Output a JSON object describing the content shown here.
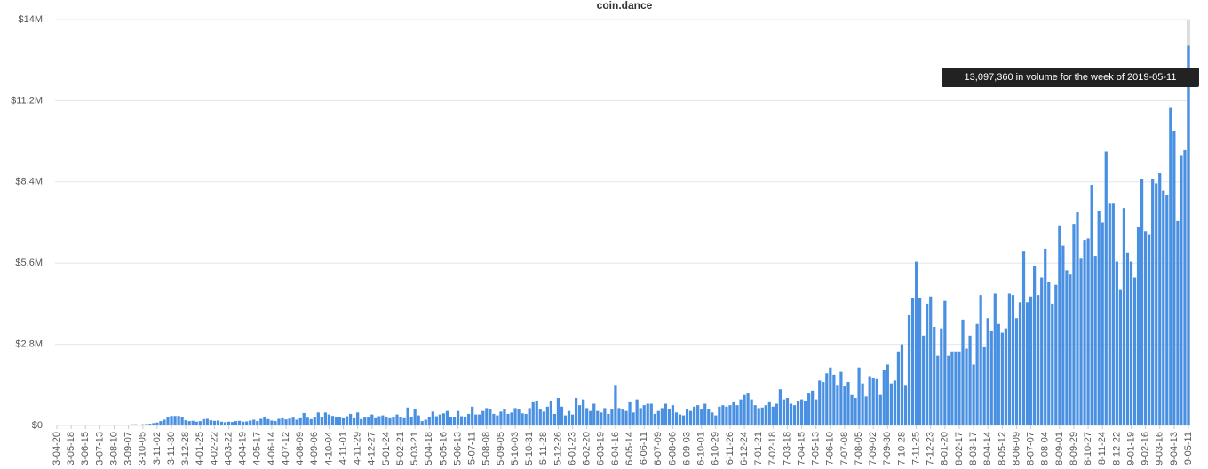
{
  "chart_data": {
    "type": "bar",
    "subtitle": "coin.dance",
    "annotation": "13,097,360 in volume for the week of 2019-05-11",
    "color": "#4a90e2",
    "grid": true,
    "ylim": [
      0,
      14000000
    ],
    "yticks": [
      {
        "value": 0,
        "label": "$0"
      },
      {
        "value": 2800000,
        "label": "$2.8M"
      },
      {
        "value": 5600000,
        "label": "$5.6M"
      },
      {
        "value": 8400000,
        "label": "$8.4M"
      },
      {
        "value": 11200000,
        "label": "$11.2M"
      },
      {
        "value": 14000000,
        "label": "$14M"
      }
    ],
    "categories": [
      "3-04-20",
      null,
      null,
      null,
      "3-05-18",
      null,
      null,
      null,
      "3-06-15",
      null,
      null,
      null,
      "3-07-13",
      null,
      null,
      null,
      "3-08-10",
      null,
      null,
      null,
      "3-09-07",
      null,
      null,
      null,
      "3-10-05",
      null,
      null,
      null,
      "3-11-02",
      null,
      null,
      null,
      "3-11-30",
      null,
      null,
      null,
      "3-12-28",
      null,
      null,
      null,
      "4-01-25",
      null,
      null,
      null,
      "4-02-22",
      null,
      null,
      null,
      "4-03-22",
      null,
      null,
      null,
      "4-04-19",
      null,
      null,
      null,
      "4-05-17",
      null,
      null,
      null,
      "4-06-14",
      null,
      null,
      null,
      "4-07-12",
      null,
      null,
      null,
      "4-08-09",
      null,
      null,
      null,
      "4-09-06",
      null,
      null,
      null,
      "4-10-04",
      null,
      null,
      null,
      "4-11-01",
      null,
      null,
      null,
      "4-11-29",
      null,
      null,
      null,
      "4-12-27",
      null,
      null,
      null,
      "5-01-24",
      null,
      null,
      null,
      "5-02-21",
      null,
      null,
      null,
      "5-03-21",
      null,
      null,
      null,
      "5-04-18",
      null,
      null,
      null,
      "5-05-16",
      null,
      null,
      null,
      "5-06-13",
      null,
      null,
      null,
      "5-07-11",
      null,
      null,
      null,
      "5-08-08",
      null,
      null,
      null,
      "5-09-05",
      null,
      null,
      null,
      "5-10-03",
      null,
      null,
      null,
      "5-10-31",
      null,
      null,
      null,
      "5-11-28",
      null,
      null,
      null,
      "5-12-26",
      null,
      null,
      null,
      "6-01-23",
      null,
      null,
      null,
      "6-02-20",
      null,
      null,
      null,
      "6-03-19",
      null,
      null,
      null,
      "6-04-16",
      null,
      null,
      null,
      "6-05-14",
      null,
      null,
      null,
      "6-06-11",
      null,
      null,
      null,
      "6-07-09",
      null,
      null,
      null,
      "6-08-06",
      null,
      null,
      null,
      "6-09-03",
      null,
      null,
      null,
      "6-10-01",
      null,
      null,
      null,
      "6-10-29",
      null,
      null,
      null,
      "6-11-26",
      null,
      null,
      null,
      "6-12-24",
      null,
      null,
      null,
      "7-01-21",
      null,
      null,
      null,
      "7-02-18",
      null,
      null,
      null,
      "7-03-18",
      null,
      null,
      null,
      "7-04-15",
      null,
      null,
      null,
      "7-05-13",
      null,
      null,
      null,
      "7-06-10",
      null,
      null,
      null,
      "7-07-08",
      null,
      null,
      null,
      "7-08-05",
      null,
      null,
      null,
      "7-09-02",
      null,
      null,
      null,
      "7-09-30",
      null,
      null,
      null,
      "7-10-28",
      null,
      null,
      null,
      "7-11-25",
      null,
      null,
      null,
      "7-12-23",
      null,
      null,
      null,
      "8-01-20",
      null,
      null,
      null,
      "8-02-17",
      null,
      null,
      null,
      "8-03-17",
      null,
      null,
      null,
      "8-04-14",
      null,
      null,
      null,
      "8-05-12",
      null,
      null,
      null,
      "8-06-09",
      null,
      null,
      null,
      "8-07-07",
      null,
      null,
      null,
      "8-08-04",
      null,
      null,
      null,
      "8-09-01",
      null,
      null,
      null,
      "8-09-29",
      null,
      null,
      null,
      "8-10-27",
      null,
      null,
      null,
      "8-11-24",
      null,
      null,
      null,
      "8-12-22",
      null,
      null,
      null,
      "9-01-19",
      null,
      null,
      null,
      "9-02-16",
      null,
      null,
      null,
      "9-03-16",
      null,
      null,
      null,
      "9-04-13",
      null,
      null,
      null,
      "9-05-11"
    ],
    "values": [
      5000,
      10000,
      5000,
      5000,
      5000,
      5000,
      10000,
      5000,
      5000,
      5000,
      5000,
      10000,
      20000,
      20000,
      20000,
      20000,
      20000,
      30000,
      30000,
      30000,
      30000,
      40000,
      40000,
      30000,
      40000,
      50000,
      60000,
      80000,
      100000,
      150000,
      200000,
      300000,
      330000,
      330000,
      330000,
      280000,
      180000,
      150000,
      160000,
      130000,
      150000,
      220000,
      230000,
      180000,
      160000,
      170000,
      130000,
      110000,
      130000,
      120000,
      150000,
      160000,
      130000,
      140000,
      170000,
      200000,
      150000,
      230000,
      300000,
      220000,
      170000,
      150000,
      230000,
      250000,
      210000,
      240000,
      270000,
      200000,
      250000,
      430000,
      270000,
      220000,
      300000,
      450000,
      300000,
      450000,
      380000,
      330000,
      280000,
      300000,
      250000,
      320000,
      400000,
      250000,
      450000,
      220000,
      280000,
      300000,
      380000,
      250000,
      320000,
      350000,
      280000,
      250000,
      300000,
      380000,
      300000,
      250000,
      620000,
      300000,
      550000,
      350000,
      150000,
      200000,
      300000,
      480000,
      320000,
      380000,
      420000,
      500000,
      300000,
      280000,
      500000,
      320000,
      280000,
      400000,
      650000,
      380000,
      380000,
      500000,
      600000,
      550000,
      400000,
      350000,
      480000,
      580000,
      400000,
      450000,
      600000,
      550000,
      420000,
      400000,
      600000,
      800000,
      850000,
      550000,
      480000,
      650000,
      850000,
      400000,
      950000,
      650000,
      350000,
      500000,
      380000,
      950000,
      700000,
      900000,
      600000,
      500000,
      750000,
      500000,
      450000,
      600000,
      400000,
      550000,
      1400000,
      600000,
      550000,
      500000,
      800000,
      450000,
      900000,
      600000,
      700000,
      750000,
      750000,
      400000,
      500000,
      600000,
      750000,
      580000,
      700000,
      450000,
      380000,
      350000,
      550000,
      500000,
      650000,
      700000,
      550000,
      750000,
      550000,
      450000,
      350000,
      650000,
      700000,
      650000,
      700000,
      800000,
      700000,
      900000,
      1050000,
      1100000,
      900000,
      700000,
      600000,
      620000,
      700000,
      800000,
      650000,
      750000,
      1250000,
      900000,
      950000,
      750000,
      700000,
      850000,
      900000,
      850000,
      1100000,
      1200000,
      900000,
      1550000,
      1500000,
      1800000,
      2000000,
      1750000,
      1400000,
      1850000,
      1350000,
      1500000,
      1050000,
      950000,
      2000000,
      1450000,
      1000000,
      1700000,
      1650000,
      1600000,
      1050000,
      1900000,
      2100000,
      1450000,
      1550000,
      2550000,
      2800000,
      1400000,
      3800000,
      4400000,
      5650000,
      4400000,
      3100000,
      4200000,
      4450000,
      3400000,
      2400000,
      3350000,
      4300000,
      2400000,
      2550000,
      2550000,
      2550000,
      3650000,
      2650000,
      3100000,
      2100000,
      3500000,
      4500000,
      2700000,
      3700000,
      3250000,
      4550000,
      3500000,
      3200000,
      3350000,
      4550000,
      4500000,
      3700000,
      4250000,
      6000000,
      4250000,
      4450000,
      5500000,
      4500000,
      5100000,
      6100000,
      4950000,
      4200000,
      4850000,
      6900000,
      6200000,
      5350000,
      5200000,
      6950000,
      7350000,
      5750000,
      6400000,
      6450000,
      8300000,
      5850000,
      7400000,
      7000000,
      9450000,
      7650000,
      7650000,
      5650000,
      4700000,
      7500000,
      5950000,
      5650000,
      5100000,
      6850000,
      8500000,
      6700000,
      6600000,
      8500000,
      8350000,
      8700000,
      8100000,
      7950000,
      10950000,
      10150000,
      7050000,
      9300000,
      9500000,
      13097360
    ]
  }
}
